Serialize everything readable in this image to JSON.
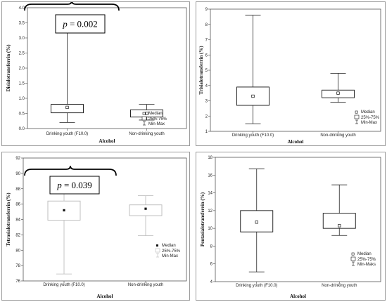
{
  "chart_data": [
    {
      "type": "box",
      "xlabel": "Alcohol",
      "ylabel": "Disialotransferrin (%)",
      "ylim": [
        0.0,
        4.0
      ],
      "yticks": [
        "0.0",
        "0.5",
        "1.0",
        "1.5",
        "2.0",
        "2.5",
        "3.0",
        "3.5",
        "4.0"
      ],
      "categories": [
        "Drinking youth (F10.0)",
        "Non-drinking youth"
      ],
      "boxes": [
        {
          "category": "Drinking youth (F10.0)",
          "min": 0.2,
          "q1": 0.52,
          "median": 0.7,
          "q3": 0.8,
          "max": 3.65
        },
        {
          "category": "Non-drinking youth",
          "min": 0.28,
          "q1": 0.38,
          "median": 0.5,
          "q3": 0.62,
          "max": 0.8
        }
      ],
      "legend": [
        "Median",
        "25%-75%",
        "Min-Max"
      ],
      "legend_position": "bottom-right",
      "annotation": {
        "italic": "p",
        "text": " = 0.002"
      },
      "box_style": "outline"
    },
    {
      "type": "box",
      "xlabel": "Alcohol",
      "ylabel": "Trisialotransferrin (%)",
      "ylim": [
        1,
        9
      ],
      "yticks": [
        "1",
        "2",
        "3",
        "4",
        "5",
        "6",
        "7",
        "8",
        "9"
      ],
      "categories": [
        "Drinking youth (F10.0)",
        "Non-drinking youth"
      ],
      "boxes": [
        {
          "category": "Drinking youth (F10.0)",
          "min": 1.5,
          "q1": 2.7,
          "median": 3.3,
          "q3": 3.9,
          "max": 8.6
        },
        {
          "category": "Non-drinking youth",
          "min": 2.9,
          "q1": 3.2,
          "median": 3.5,
          "q3": 3.7,
          "max": 4.8
        }
      ],
      "legend": [
        "Median",
        "25%-75%",
        "Min-Max"
      ],
      "legend_position": "bottom-right",
      "box_style": "outline"
    },
    {
      "type": "box",
      "xlabel": "Alcohol",
      "ylabel": "Tetrasialotransferrin (%)",
      "ylim": [
        76,
        92
      ],
      "yticks": [
        "76",
        "78",
        "80",
        "82",
        "84",
        "86",
        "88",
        "90",
        "92"
      ],
      "categories": [
        "Drinking youth (F10.0)",
        "Non-drinking youth"
      ],
      "boxes": [
        {
          "category": "Drinking youth (F10.0)",
          "min": 76.9,
          "q1": 83.9,
          "median": 85.2,
          "q3": 86.4,
          "max": 89.6
        },
        {
          "category": "Non-drinking youth",
          "min": 81.9,
          "q1": 84.5,
          "median": 85.4,
          "q3": 85.9,
          "max": 87.1
        }
      ],
      "legend": [
        "Median",
        "25%-75%",
        "Min-Max"
      ],
      "legend_position": "bottom-right",
      "annotation": {
        "italic": "p",
        "text": " = 0.039"
      },
      "box_style": "light"
    },
    {
      "type": "box",
      "xlabel": "Alcohol",
      "ylabel": "Pentasialotransferrin (%)",
      "ylim": [
        4,
        18
      ],
      "yticks": [
        "4",
        "6",
        "8",
        "10",
        "12",
        "14",
        "16",
        "18"
      ],
      "categories": [
        "Drinking youth (F10.0)",
        "Non-drinking youth"
      ],
      "boxes": [
        {
          "category": "Drinking youth (F10.0)",
          "min": 5.1,
          "q1": 9.6,
          "median": 10.7,
          "q3": 12.0,
          "max": 16.7
        },
        {
          "category": "Non-drinking youth",
          "min": 9.2,
          "q1": 10.0,
          "median": 10.3,
          "q3": 11.7,
          "max": 14.9
        }
      ],
      "legend": [
        "Median",
        "25%-75%",
        "Min-Maks"
      ],
      "legend_position": "bottom-right",
      "box_style": "outline"
    }
  ]
}
